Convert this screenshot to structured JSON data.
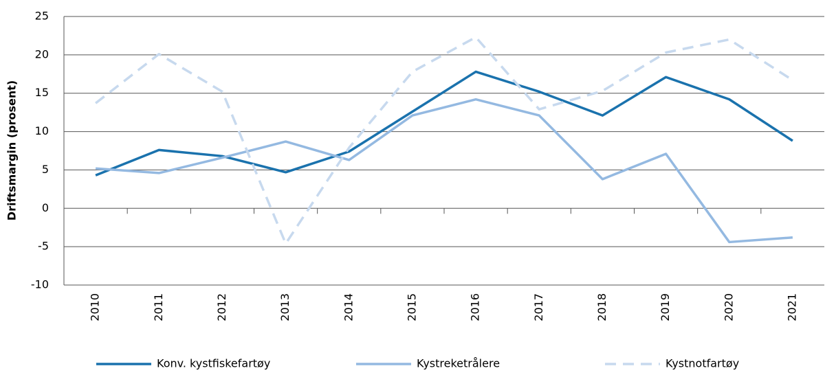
{
  "chart_data": {
    "type": "line",
    "y_label": "Driftsmargin (prosent)",
    "categories": [
      "2010",
      "2011",
      "2012",
      "2013",
      "2014",
      "2015",
      "2016",
      "2017",
      "2018",
      "2019",
      "2020",
      "2021"
    ],
    "series": [
      {
        "name": "Konv. kystfiskefartøy",
        "color": "#1a72ad",
        "dashed": false,
        "values": [
          4.3,
          7.6,
          6.8,
          4.7,
          7.4,
          12.6,
          17.8,
          15.2,
          12.1,
          17.1,
          14.2,
          8.8
        ]
      },
      {
        "name": "Kystreketrålere",
        "color": "#94b9e1",
        "dashed": false,
        "values": [
          5.2,
          4.6,
          6.6,
          8.7,
          6.3,
          12.1,
          14.2,
          12.1,
          3.8,
          7.1,
          -4.4,
          -3.8
        ]
      },
      {
        "name": "Kystnotfartøy",
        "color": "#c7d9ee",
        "dashed": true,
        "values": [
          13.7,
          20.1,
          15.2,
          -4.6,
          7.9,
          17.8,
          22.3,
          12.9,
          15.3,
          20.3,
          22.0,
          16.7
        ]
      }
    ],
    "ylim": [
      -10,
      25
    ],
    "yticks": [
      -10,
      -5,
      0,
      5,
      10,
      15,
      20,
      25
    ],
    "grid": true
  }
}
